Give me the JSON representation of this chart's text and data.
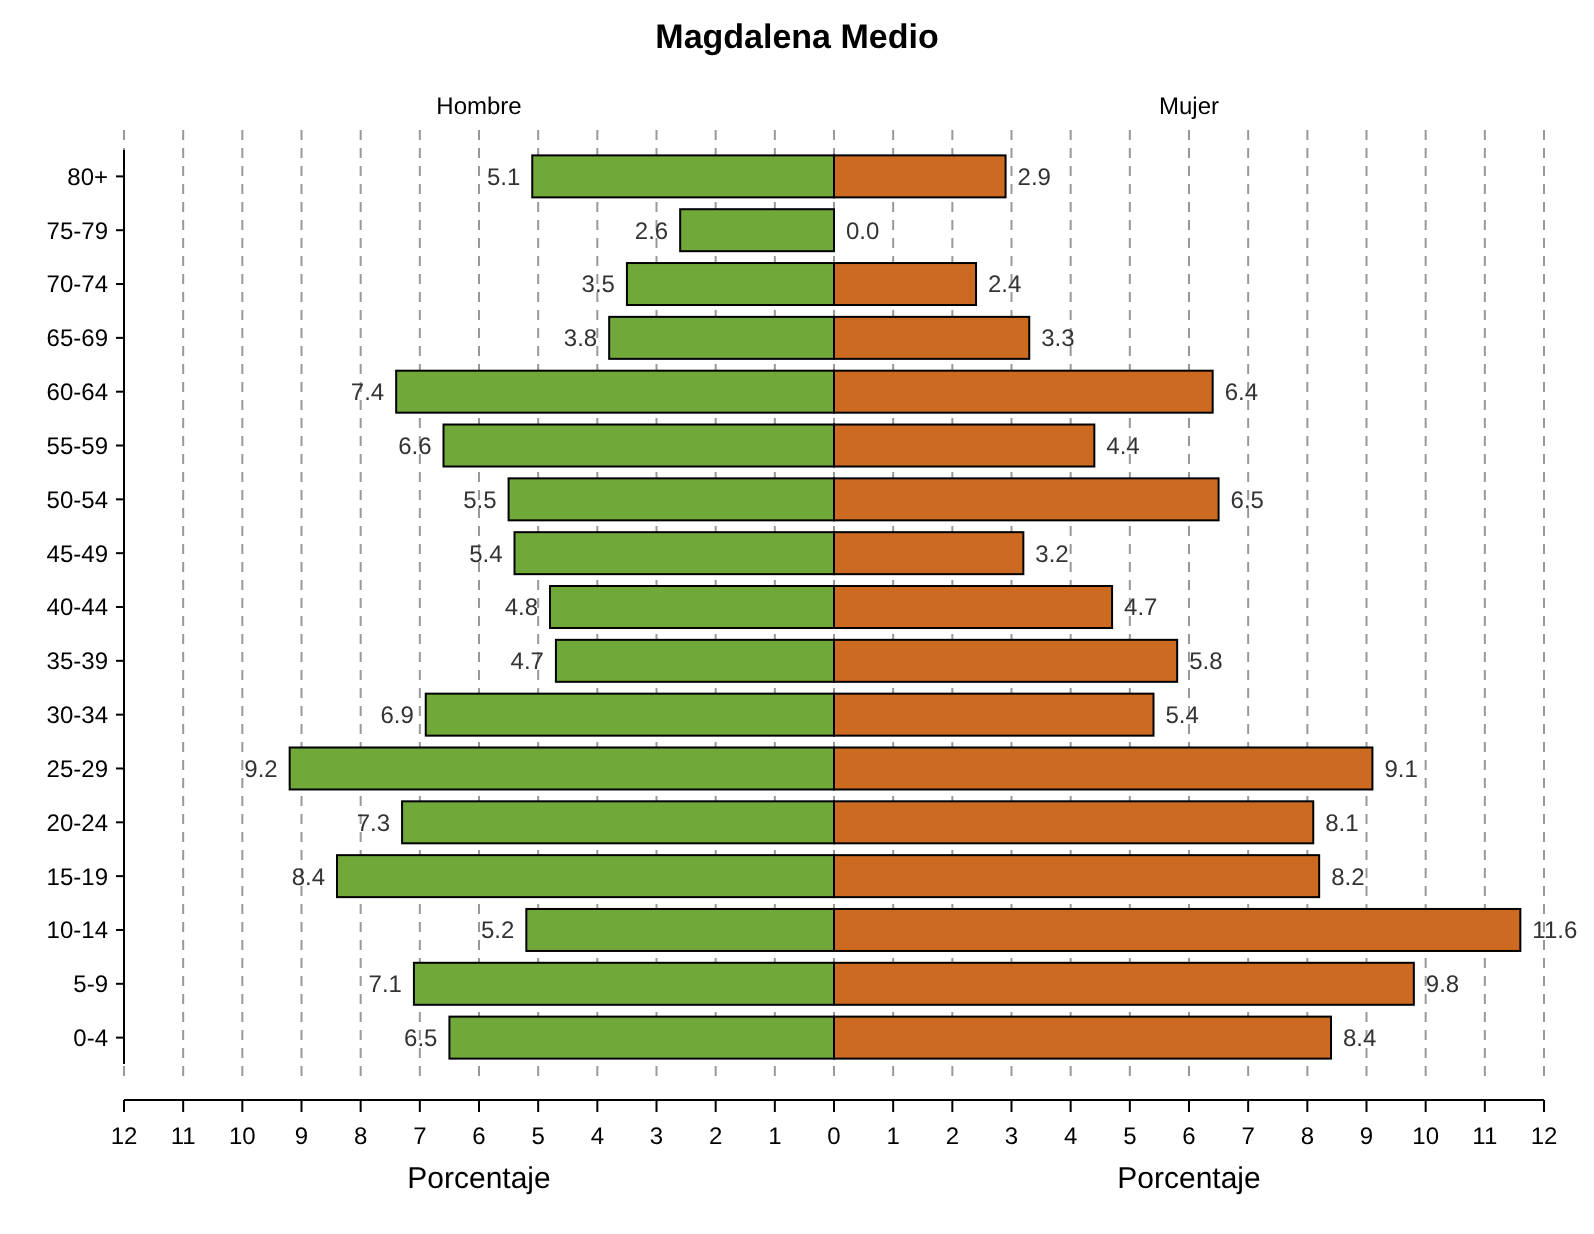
{
  "chart_data": [
    {
      "type": "bar",
      "orientation": "horizontal",
      "title": "Magdalena Medio",
      "subtitle": "Hombre",
      "xlabel": "Porcentaje",
      "grid": "x",
      "categories": [
        "80+",
        "75-79",
        "70-74",
        "65-69",
        "60-64",
        "55-59",
        "50-54",
        "45-49",
        "40-44",
        "35-39",
        "30-34",
        "25-29",
        "20-24",
        "15-19",
        "10-14",
        "5-9",
        "0-4"
      ],
      "series": [
        {
          "color": "#70a83a",
          "values": [
            5.1,
            2.6,
            3.5,
            3.8,
            7.4,
            6.6,
            5.5,
            5.4,
            4.8,
            4.7,
            6.9,
            9.2,
            7.3,
            8.4,
            5.2,
            7.1,
            6.5
          ],
          "value_labels": [
            "5.1",
            "2.6",
            "3.5",
            "3.8",
            "7.4",
            "6.6",
            "5.5",
            "5.4",
            "4.8",
            "4.7",
            "6.9",
            "9.2",
            "7.3",
            "8.4",
            "5.2",
            "7.1",
            "6.5"
          ]
        }
      ],
      "xlim": [
        12,
        0
      ],
      "xticks": [
        12,
        11,
        10,
        9,
        8,
        7,
        6,
        5,
        4,
        3,
        2,
        1,
        0
      ]
    },
    {
      "type": "bar",
      "orientation": "horizontal",
      "subtitle": "Mujer",
      "xlabel": "Porcentaje",
      "grid": "x",
      "categories": [
        null,
        null,
        null,
        null,
        null,
        null,
        null,
        null,
        null,
        null,
        null,
        null,
        null,
        null,
        null,
        null,
        null
      ],
      "series": [
        {
          "color": "#cd6a22",
          "values": [
            2.9,
            0.0,
            2.4,
            3.3,
            6.4,
            4.4,
            6.5,
            3.2,
            4.7,
            5.8,
            5.4,
            9.1,
            8.1,
            8.2,
            11.6,
            9.8,
            8.4
          ],
          "value_labels": [
            "2.9",
            "0.0",
            "2.4",
            "3.3",
            "6.4",
            "4.4",
            "6.5",
            "3.2",
            "4.7",
            "5.8",
            "5.4",
            "9.1",
            "8.1",
            "8.2",
            "11.6",
            "9.8",
            "8.4"
          ]
        }
      ],
      "xlim": [
        0,
        12
      ],
      "xticks": [
        1,
        2,
        3,
        4,
        5,
        6,
        7,
        8,
        9,
        10,
        11,
        12
      ]
    }
  ]
}
